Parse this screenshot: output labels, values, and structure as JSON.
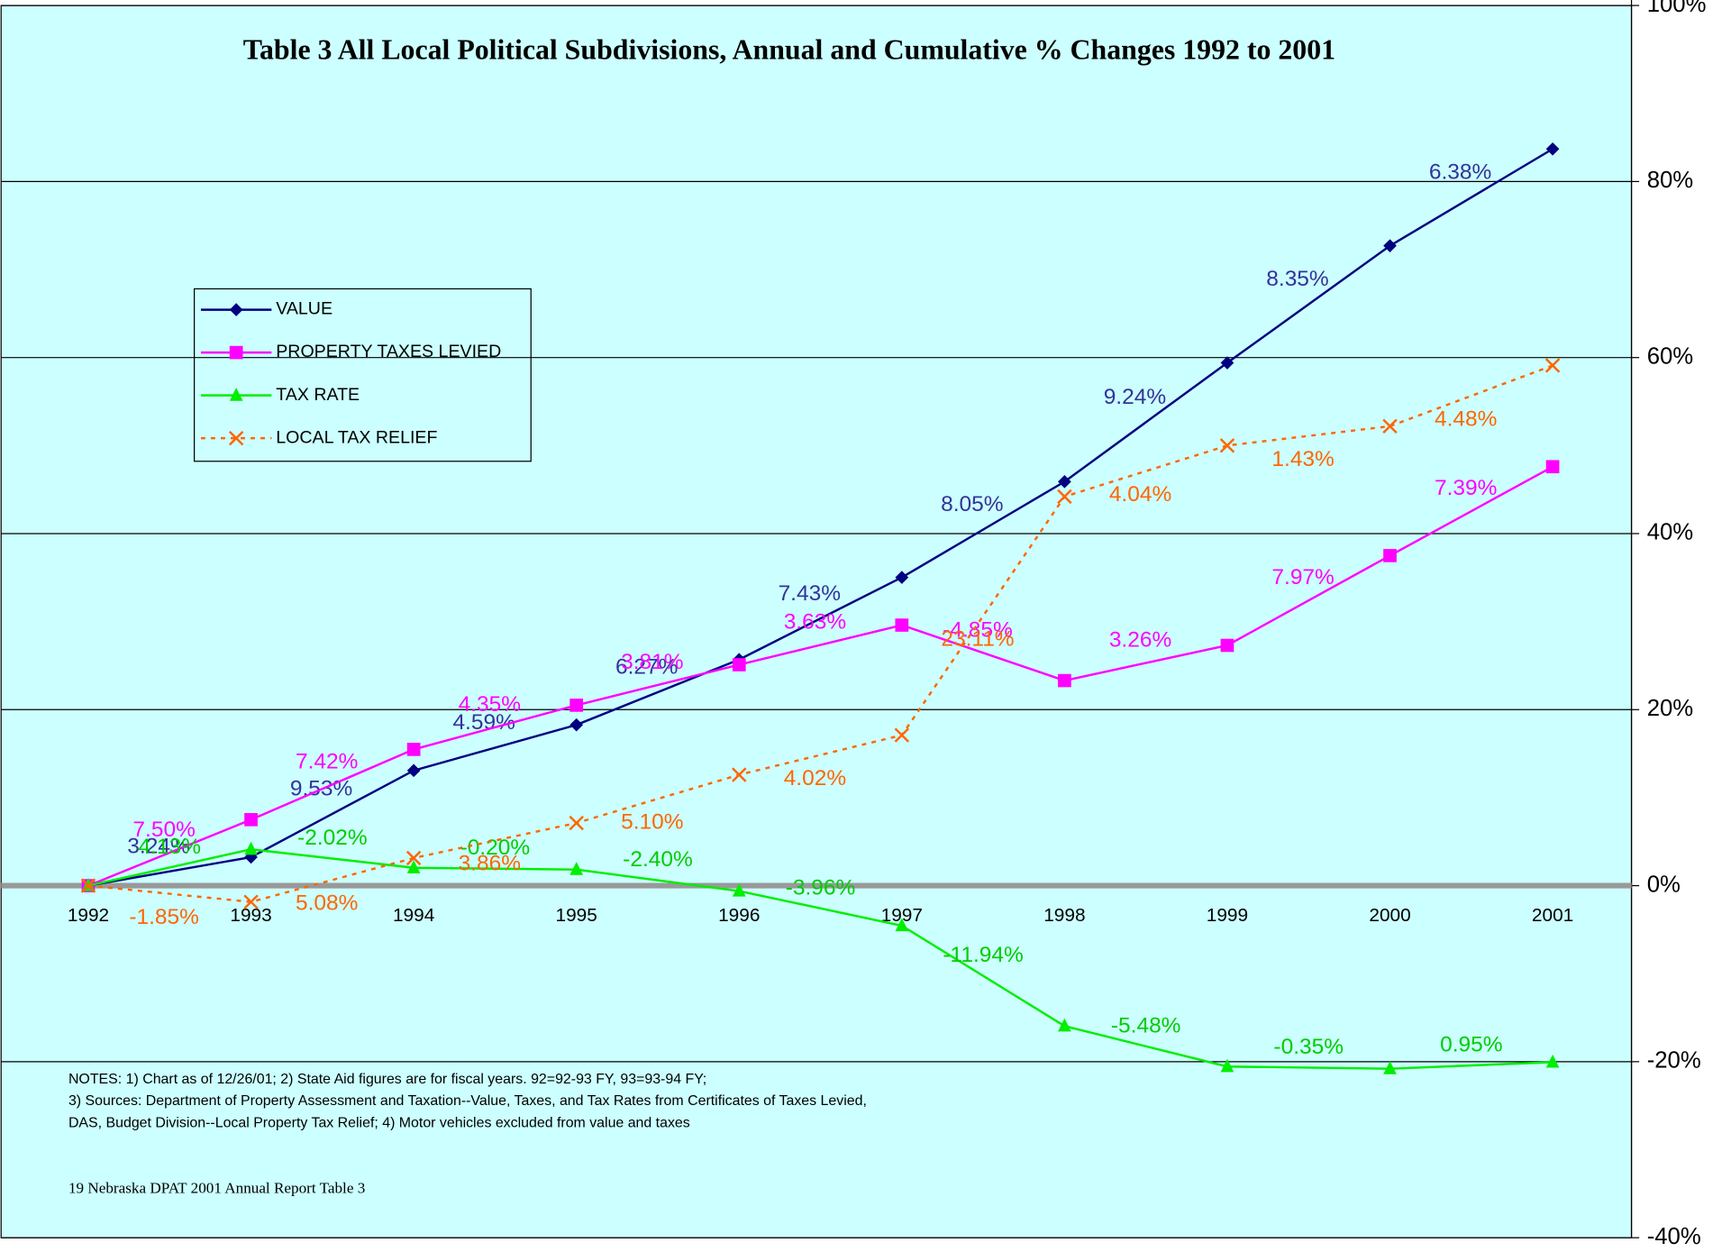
{
  "chart_data": {
    "type": "line",
    "title": "Table 3 All Local Political Subdivisions, Annual and Cumulative % Changes 1992 to 2001",
    "categories": [
      "1992",
      "1993",
      "1994",
      "1995",
      "1996",
      "1997",
      "1998",
      "1999",
      "2000",
      "2001"
    ],
    "ylim": [
      -40,
      100
    ],
    "yticks": [
      {
        "value": -40,
        "label": "-40%"
      },
      {
        "value": -20,
        "label": "-20%"
      },
      {
        "value": 0,
        "label": "0%"
      },
      {
        "value": 20,
        "label": "20%"
      },
      {
        "value": 40,
        "label": "40%"
      },
      {
        "value": 60,
        "label": "60%"
      },
      {
        "value": 80,
        "label": "80%"
      },
      {
        "value": 100,
        "label": "100%"
      }
    ],
    "grid": true,
    "legend": "upper left",
    "series": [
      {
        "name": "VALUE",
        "color": "#000080",
        "label_color": "#333399",
        "marker": "diamond",
        "dashed": false,
        "values": [
          0,
          3.24,
          13.08,
          18.27,
          25.69,
          35.02,
          45.9,
          59.4,
          72.7,
          83.7
        ],
        "annual_labels": [
          null,
          "3.24%",
          "9.53%",
          "4.59%",
          "6.27%",
          "7.43%",
          "8.05%",
          "9.24%",
          "8.35%",
          "6.38%"
        ]
      },
      {
        "name": "PROPERTY TAXES LEVIED",
        "color": "#ff00ff",
        "label_color": "#ff00ff",
        "marker": "square",
        "dashed": false,
        "values": [
          0,
          7.5,
          15.48,
          20.5,
          25.1,
          29.6,
          23.3,
          27.3,
          37.5,
          47.6
        ],
        "annual_labels": [
          null,
          "7.50%",
          "7.42%",
          "4.35%",
          "3.81%",
          "3.63%",
          "-4.85%",
          "3.26%",
          "7.97%",
          "7.39%"
        ]
      },
      {
        "name": "TAX RATE",
        "color": "#00ee00",
        "label_color": "#00cc00",
        "marker": "triangle",
        "dashed": false,
        "values": [
          0,
          4.13,
          2.03,
          1.83,
          -0.61,
          -4.55,
          -15.95,
          -20.55,
          -20.8,
          -20.05
        ],
        "annual_labels": [
          null,
          "4.13%",
          "-2.02%",
          "-0.20%",
          "-2.40%",
          "-3.96%",
          "-11.94%",
          "-5.48%",
          "-0.35%",
          "0.95%"
        ]
      },
      {
        "name": "LOCAL TAX RELIEF",
        "color": "#ff6600",
        "label_color": "#ff6600",
        "marker": "x",
        "dashed": true,
        "values": [
          0,
          -1.85,
          3.14,
          7.12,
          12.6,
          17.1,
          44.2,
          50.0,
          52.2,
          59.1
        ],
        "annual_labels": [
          null,
          "-1.85%",
          "5.08%",
          "3.86%",
          "5.10%",
          "4.02%",
          "23.11%",
          "4.04%",
          "1.43%",
          "4.48%"
        ]
      }
    ],
    "notes": [
      "NOTES:  1)  Chart as of 12/26/01;  2)  State Aid figures are for fiscal years.  92=92-93 FY, 93=93-94 FY;",
      "3)  Sources:  Department of Property Assessment and Taxation--Value, Taxes, and Tax Rates from Certificates of Taxes Levied,",
      "DAS, Budget Division--Local Property Tax Relief;  4)  Motor vehicles excluded from value and taxes"
    ],
    "footer": "19   Nebraska DPAT 2001 Annual Report Table 3"
  }
}
